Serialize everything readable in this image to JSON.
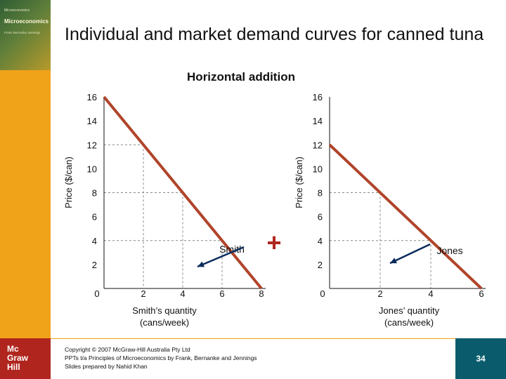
{
  "slide": {
    "title": "Individual and market demand curves for canned tuna",
    "page_number": "34",
    "cover": {
      "top": "Microeconomics",
      "title": "Microeconomics",
      "sub": "Frank Bernanke Jennings"
    },
    "publisher_logo": [
      "Mc",
      "Graw",
      "Hill"
    ],
    "copyright": [
      "Copyright © 2007 McGraw-Hill Australia Pty Ltd",
      "PPTs t/a Principles of Microeconomics by Frank, Bernanke and Jennings",
      "Slides prepared by Nahid Khan"
    ],
    "colors": {
      "sidebar": "#f0a219",
      "logo": "#b0261e",
      "page_badge": "#0a5c6d",
      "curve": "#b0442a",
      "grid": "#888888"
    }
  },
  "chart_data": {
    "title": "Horizontal addition",
    "operator": "+",
    "charts": [
      {
        "type": "line",
        "name": "Smith",
        "label": "Smith",
        "xlabel": "Smith’s quantity (cans/week)",
        "ylabel": "Price ($/can)",
        "x_ticks": [
          0,
          2,
          4,
          6,
          8
        ],
        "y_ticks": [
          16,
          14,
          12,
          10,
          8,
          6,
          4,
          2
        ],
        "xlim": [
          0,
          8
        ],
        "ylim": [
          0,
          16
        ],
        "points": [
          [
            0,
            16
          ],
          [
            8,
            0
          ]
        ],
        "guides": [
          2,
          4,
          6
        ]
      },
      {
        "type": "line",
        "name": "Jones",
        "label": "Jones",
        "xlabel": "Jones’ quantity (cans/week)",
        "ylabel": "Price ($/can)",
        "x_ticks": [
          0,
          2,
          4,
          6
        ],
        "y_ticks": [
          16,
          14,
          12,
          10,
          8,
          6,
          4,
          2
        ],
        "xlim": [
          0,
          6
        ],
        "ylim": [
          0,
          16
        ],
        "points": [
          [
            0,
            12
          ],
          [
            6,
            0
          ]
        ],
        "guides": [
          2,
          4
        ]
      }
    ]
  }
}
